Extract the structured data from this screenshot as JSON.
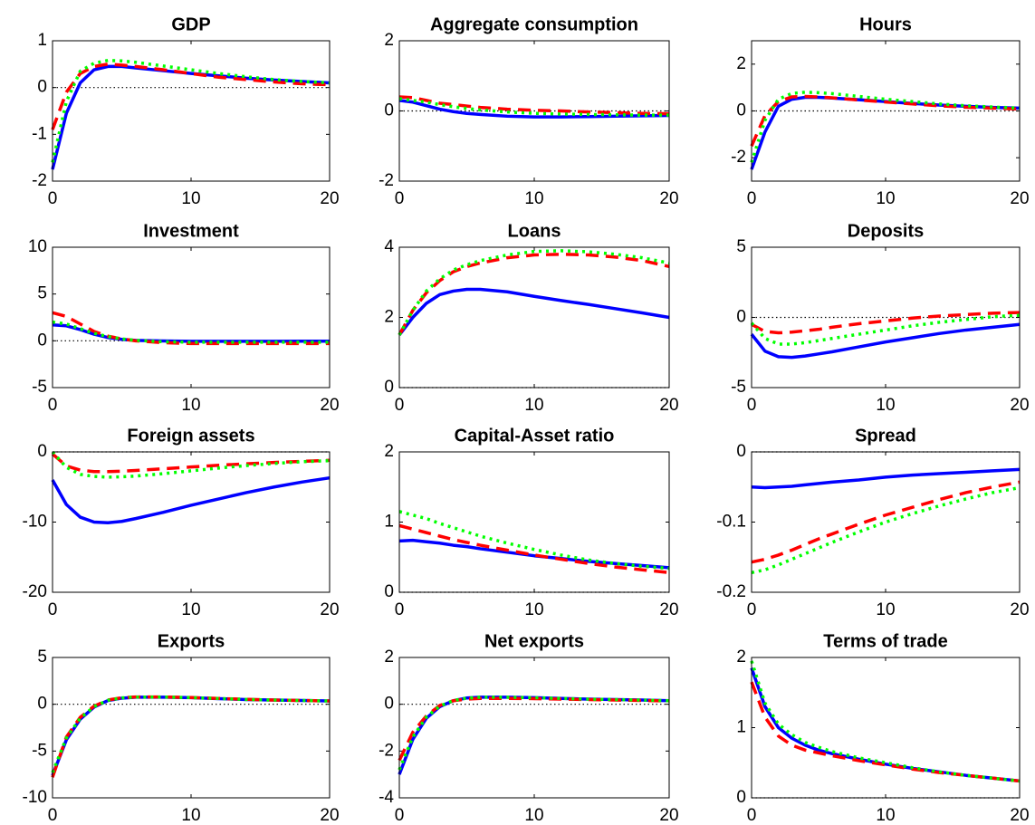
{
  "chart_data": [
    {
      "type": "line",
      "title": "GDP",
      "x": [
        0,
        1,
        2,
        3,
        4,
        5,
        6,
        8,
        10,
        12,
        14,
        16,
        18,
        20
      ],
      "xlim": [
        0,
        20
      ],
      "xticks": [
        0,
        10,
        20
      ],
      "ylim": [
        -2,
        1
      ],
      "yticks": [
        -2,
        -1,
        0,
        1
      ],
      "zero_line": true,
      "series": [
        {
          "color": "#0000ff",
          "style": "solid",
          "values": [
            -1.75,
            -0.55,
            0.1,
            0.38,
            0.45,
            0.45,
            0.42,
            0.36,
            0.3,
            0.25,
            0.2,
            0.16,
            0.13,
            0.1
          ]
        },
        {
          "color": "#ff0000",
          "style": "dashed",
          "values": [
            -0.9,
            -0.1,
            0.3,
            0.45,
            0.5,
            0.48,
            0.45,
            0.38,
            0.3,
            0.22,
            0.17,
            0.12,
            0.08,
            0.06
          ]
        },
        {
          "color": "#00ff00",
          "style": "dotted",
          "values": [
            -1.6,
            -0.3,
            0.35,
            0.52,
            0.58,
            0.57,
            0.54,
            0.46,
            0.38,
            0.3,
            0.23,
            0.17,
            0.13,
            0.1
          ]
        }
      ]
    },
    {
      "type": "line",
      "title": "Aggregate consumption",
      "x": [
        0,
        1,
        2,
        3,
        4,
        5,
        6,
        8,
        10,
        12,
        14,
        16,
        18,
        20
      ],
      "xlim": [
        0,
        20
      ],
      "xticks": [
        0,
        10,
        20
      ],
      "ylim": [
        -2,
        2
      ],
      "yticks": [
        -2,
        0,
        2
      ],
      "zero_line": true,
      "series": [
        {
          "color": "#0000ff",
          "style": "solid",
          "values": [
            0.3,
            0.25,
            0.15,
            0.05,
            -0.02,
            -0.07,
            -0.1,
            -0.15,
            -0.17,
            -0.17,
            -0.16,
            -0.15,
            -0.14,
            -0.13
          ]
        },
        {
          "color": "#ff0000",
          "style": "dashed",
          "values": [
            0.4,
            0.38,
            0.3,
            0.22,
            0.18,
            0.14,
            0.1,
            0.05,
            0.02,
            0,
            -0.03,
            -0.05,
            -0.07,
            -0.08
          ]
        },
        {
          "color": "#00ff00",
          "style": "dotted",
          "values": [
            0.35,
            0.3,
            0.25,
            0.18,
            0.12,
            0.07,
            0.03,
            -0.03,
            -0.07,
            -0.09,
            -0.1,
            -0.11,
            -0.12,
            -0.12
          ]
        }
      ]
    },
    {
      "type": "line",
      "title": "Hours",
      "x": [
        0,
        1,
        2,
        3,
        4,
        5,
        6,
        8,
        10,
        12,
        14,
        16,
        18,
        20
      ],
      "xlim": [
        0,
        20
      ],
      "xticks": [
        0,
        10,
        20
      ],
      "ylim": [
        -3,
        3
      ],
      "yticks": [
        -2,
        0,
        2
      ],
      "zero_line": true,
      "series": [
        {
          "color": "#0000ff",
          "style": "solid",
          "values": [
            -2.5,
            -0.9,
            0.2,
            0.5,
            0.58,
            0.58,
            0.55,
            0.48,
            0.4,
            0.32,
            0.25,
            0.2,
            0.15,
            0.12
          ]
        },
        {
          "color": "#ff0000",
          "style": "dashed",
          "values": [
            -1.5,
            -0.2,
            0.4,
            0.6,
            0.62,
            0.6,
            0.56,
            0.47,
            0.38,
            0.3,
            0.22,
            0.16,
            0.12,
            0.08
          ]
        },
        {
          "color": "#00ff00",
          "style": "dotted",
          "values": [
            -2.2,
            -0.4,
            0.5,
            0.75,
            0.8,
            0.78,
            0.74,
            0.62,
            0.5,
            0.4,
            0.3,
            0.22,
            0.17,
            0.12
          ]
        }
      ]
    },
    {
      "type": "line",
      "title": "Investment",
      "x": [
        0,
        1,
        2,
        3,
        4,
        5,
        6,
        8,
        10,
        12,
        14,
        16,
        18,
        20
      ],
      "xlim": [
        0,
        20
      ],
      "xticks": [
        0,
        10,
        20
      ],
      "ylim": [
        -5,
        10
      ],
      "yticks": [
        -5,
        0,
        5,
        10
      ],
      "zero_line": true,
      "series": [
        {
          "color": "#0000ff",
          "style": "solid",
          "values": [
            1.7,
            1.6,
            1.2,
            0.7,
            0.35,
            0.15,
            0.05,
            -0.02,
            -0.05,
            -0.05,
            -0.05,
            -0.05,
            -0.04,
            -0.04
          ]
        },
        {
          "color": "#ff0000",
          "style": "dashed",
          "values": [
            3.0,
            2.6,
            1.8,
            1.0,
            0.5,
            0.2,
            0,
            -0.2,
            -0.3,
            -0.3,
            -0.3,
            -0.3,
            -0.3,
            -0.3
          ]
        },
        {
          "color": "#00ff00",
          "style": "dotted",
          "values": [
            2.0,
            1.8,
            1.3,
            0.8,
            0.45,
            0.2,
            0.05,
            -0.1,
            -0.15,
            -0.15,
            -0.15,
            -0.15,
            -0.15,
            -0.15
          ]
        }
      ]
    },
    {
      "type": "line",
      "title": "Loans",
      "x": [
        0,
        1,
        2,
        3,
        4,
        5,
        6,
        8,
        10,
        12,
        14,
        16,
        18,
        20
      ],
      "xlim": [
        0,
        20
      ],
      "xticks": [
        0,
        10,
        20
      ],
      "ylim": [
        0,
        4
      ],
      "yticks": [
        0,
        2,
        4
      ],
      "zero_line": true,
      "series": [
        {
          "color": "#0000ff",
          "style": "solid",
          "values": [
            1.5,
            2.0,
            2.4,
            2.65,
            2.75,
            2.8,
            2.8,
            2.73,
            2.6,
            2.48,
            2.37,
            2.25,
            2.13,
            2.0
          ]
        },
        {
          "color": "#ff0000",
          "style": "dashed",
          "values": [
            1.5,
            2.2,
            2.7,
            3.05,
            3.3,
            3.45,
            3.55,
            3.7,
            3.78,
            3.8,
            3.78,
            3.72,
            3.62,
            3.45
          ]
        },
        {
          "color": "#00ff00",
          "style": "dotted",
          "values": [
            1.5,
            2.2,
            2.75,
            3.1,
            3.35,
            3.5,
            3.62,
            3.78,
            3.88,
            3.9,
            3.87,
            3.8,
            3.7,
            3.55
          ]
        }
      ]
    },
    {
      "type": "line",
      "title": "Deposits",
      "x": [
        0,
        1,
        2,
        3,
        4,
        5,
        6,
        8,
        10,
        12,
        14,
        16,
        18,
        20
      ],
      "xlim": [
        0,
        20
      ],
      "xticks": [
        0,
        10,
        20
      ],
      "ylim": [
        -5,
        5
      ],
      "yticks": [
        -5,
        0,
        5
      ],
      "zero_line": true,
      "series": [
        {
          "color": "#0000ff",
          "style": "solid",
          "values": [
            -1.2,
            -2.4,
            -2.8,
            -2.85,
            -2.75,
            -2.6,
            -2.45,
            -2.1,
            -1.75,
            -1.45,
            -1.15,
            -0.9,
            -0.7,
            -0.5
          ]
        },
        {
          "color": "#ff0000",
          "style": "dashed",
          "values": [
            -0.5,
            -1.0,
            -1.1,
            -1.05,
            -0.95,
            -0.85,
            -0.7,
            -0.45,
            -0.25,
            -0.05,
            0.1,
            0.2,
            0.3,
            0.35
          ]
        },
        {
          "color": "#00ff00",
          "style": "dotted",
          "values": [
            -0.4,
            -1.5,
            -1.9,
            -1.9,
            -1.8,
            -1.65,
            -1.5,
            -1.2,
            -0.9,
            -0.6,
            -0.35,
            -0.15,
            0.05,
            0.15
          ]
        }
      ]
    },
    {
      "type": "line",
      "title": "Foreign assets",
      "x": [
        0,
        1,
        2,
        3,
        4,
        5,
        6,
        8,
        10,
        12,
        14,
        16,
        18,
        20
      ],
      "xlim": [
        0,
        20
      ],
      "xticks": [
        0,
        10,
        20
      ],
      "ylim": [
        -20,
        0
      ],
      "yticks": [
        -20,
        -10,
        0
      ],
      "zero_line": true,
      "series": [
        {
          "color": "#0000ff",
          "style": "solid",
          "values": [
            -4,
            -7.5,
            -9.3,
            -10,
            -10.1,
            -9.9,
            -9.5,
            -8.6,
            -7.6,
            -6.7,
            -5.8,
            -5.0,
            -4.3,
            -3.7
          ]
        },
        {
          "color": "#ff0000",
          "style": "dashed",
          "values": [
            -0.3,
            -2,
            -2.6,
            -2.8,
            -2.8,
            -2.75,
            -2.65,
            -2.4,
            -2.15,
            -1.9,
            -1.7,
            -1.5,
            -1.35,
            -1.2
          ]
        },
        {
          "color": "#00ff00",
          "style": "dotted",
          "values": [
            0,
            -2.2,
            -3.2,
            -3.5,
            -3.6,
            -3.55,
            -3.45,
            -3.1,
            -2.7,
            -2.3,
            -1.95,
            -1.65,
            -1.4,
            -1.25
          ]
        }
      ]
    },
    {
      "type": "line",
      "title": "Capital-Asset ratio",
      "x": [
        0,
        1,
        2,
        3,
        4,
        5,
        6,
        8,
        10,
        12,
        14,
        16,
        18,
        20
      ],
      "xlim": [
        0,
        20
      ],
      "xticks": [
        0,
        10,
        20
      ],
      "ylim": [
        0,
        2
      ],
      "yticks": [
        0,
        1,
        2
      ],
      "zero_line": true,
      "series": [
        {
          "color": "#0000ff",
          "style": "solid",
          "values": [
            0.73,
            0.74,
            0.72,
            0.7,
            0.67,
            0.65,
            0.62,
            0.57,
            0.52,
            0.48,
            0.44,
            0.41,
            0.38,
            0.35
          ]
        },
        {
          "color": "#ff0000",
          "style": "dashed",
          "values": [
            0.95,
            0.9,
            0.85,
            0.8,
            0.75,
            0.71,
            0.67,
            0.6,
            0.53,
            0.47,
            0.41,
            0.36,
            0.32,
            0.28
          ]
        },
        {
          "color": "#00ff00",
          "style": "dotted",
          "values": [
            1.15,
            1.1,
            1.05,
            0.98,
            0.92,
            0.86,
            0.8,
            0.7,
            0.61,
            0.53,
            0.46,
            0.41,
            0.37,
            0.34
          ]
        }
      ]
    },
    {
      "type": "line",
      "title": "Spread",
      "x": [
        0,
        1,
        2,
        3,
        4,
        5,
        6,
        8,
        10,
        12,
        14,
        16,
        18,
        20
      ],
      "xlim": [
        0,
        20
      ],
      "xticks": [
        0,
        10,
        20
      ],
      "ylim": [
        -0.2,
        0
      ],
      "yticks": [
        -0.2,
        -0.1,
        0
      ],
      "zero_line": true,
      "series": [
        {
          "color": "#0000ff",
          "style": "solid",
          "values": [
            -0.05,
            -0.051,
            -0.05,
            -0.049,
            -0.047,
            -0.045,
            -0.043,
            -0.04,
            -0.036,
            -0.033,
            -0.031,
            -0.029,
            -0.027,
            -0.025
          ]
        },
        {
          "color": "#ff0000",
          "style": "dashed",
          "values": [
            -0.157,
            -0.153,
            -0.147,
            -0.14,
            -0.132,
            -0.124,
            -0.117,
            -0.103,
            -0.09,
            -0.079,
            -0.068,
            -0.058,
            -0.05,
            -0.043
          ]
        },
        {
          "color": "#00ff00",
          "style": "dotted",
          "values": [
            -0.172,
            -0.168,
            -0.161,
            -0.153,
            -0.145,
            -0.137,
            -0.129,
            -0.114,
            -0.1,
            -0.088,
            -0.077,
            -0.067,
            -0.058,
            -0.051
          ]
        }
      ]
    },
    {
      "type": "line",
      "title": "Exports",
      "x": [
        0,
        1,
        2,
        3,
        4,
        5,
        6,
        8,
        10,
        12,
        14,
        16,
        18,
        20
      ],
      "xlim": [
        0,
        20
      ],
      "xticks": [
        0,
        10,
        20
      ],
      "ylim": [
        -10,
        5
      ],
      "yticks": [
        -10,
        -5,
        0,
        5
      ],
      "zero_line": true,
      "series": [
        {
          "color": "#0000ff",
          "style": "solid",
          "values": [
            -7.6,
            -3.8,
            -1.6,
            -0.3,
            0.4,
            0.65,
            0.75,
            0.75,
            0.7,
            0.6,
            0.5,
            0.45,
            0.4,
            0.35
          ]
        },
        {
          "color": "#ff0000",
          "style": "dashed",
          "values": [
            -7.8,
            -3.5,
            -1.4,
            -0.2,
            0.45,
            0.7,
            0.78,
            0.78,
            0.72,
            0.62,
            0.52,
            0.45,
            0.4,
            0.35
          ]
        },
        {
          "color": "#00ff00",
          "style": "dotted",
          "values": [
            -7.3,
            -3.6,
            -1.5,
            -0.25,
            0.42,
            0.68,
            0.77,
            0.77,
            0.71,
            0.61,
            0.51,
            0.45,
            0.4,
            0.35
          ]
        }
      ]
    },
    {
      "type": "line",
      "title": "Net exports",
      "x": [
        0,
        1,
        2,
        3,
        4,
        5,
        6,
        8,
        10,
        12,
        14,
        16,
        18,
        20
      ],
      "xlim": [
        0,
        20
      ],
      "xticks": [
        0,
        10,
        20
      ],
      "ylim": [
        -4,
        2
      ],
      "yticks": [
        -4,
        -2,
        0,
        2
      ],
      "zero_line": true,
      "series": [
        {
          "color": "#0000ff",
          "style": "solid",
          "values": [
            -3.0,
            -1.5,
            -0.6,
            -0.1,
            0.15,
            0.27,
            0.3,
            0.3,
            0.28,
            0.25,
            0.22,
            0.2,
            0.18,
            0.15
          ]
        },
        {
          "color": "#ff0000",
          "style": "dashed",
          "values": [
            -2.4,
            -1.2,
            -0.5,
            -0.05,
            0.15,
            0.22,
            0.25,
            0.25,
            0.24,
            0.22,
            0.2,
            0.18,
            0.16,
            0.14
          ]
        },
        {
          "color": "#00ff00",
          "style": "dotted",
          "values": [
            -2.8,
            -1.4,
            -0.55,
            -0.08,
            0.16,
            0.26,
            0.3,
            0.3,
            0.28,
            0.25,
            0.22,
            0.2,
            0.18,
            0.15
          ]
        }
      ]
    },
    {
      "type": "line",
      "title": "Terms of trade",
      "x": [
        0,
        1,
        2,
        3,
        4,
        5,
        6,
        8,
        10,
        12,
        14,
        16,
        18,
        20
      ],
      "xlim": [
        0,
        20
      ],
      "xticks": [
        0,
        10,
        20
      ],
      "ylim": [
        0,
        2
      ],
      "yticks": [
        0,
        1,
        2
      ],
      "zero_line": true,
      "series": [
        {
          "color": "#0000ff",
          "style": "solid",
          "values": [
            1.85,
            1.3,
            1.0,
            0.85,
            0.75,
            0.68,
            0.63,
            0.55,
            0.48,
            0.42,
            0.37,
            0.32,
            0.28,
            0.24
          ]
        },
        {
          "color": "#ff0000",
          "style": "dashed",
          "values": [
            1.65,
            1.15,
            0.88,
            0.75,
            0.68,
            0.64,
            0.6,
            0.53,
            0.47,
            0.41,
            0.36,
            0.32,
            0.28,
            0.24
          ]
        },
        {
          "color": "#00ff00",
          "style": "dotted",
          "values": [
            1.95,
            1.35,
            1.05,
            0.9,
            0.79,
            0.72,
            0.66,
            0.57,
            0.5,
            0.43,
            0.37,
            0.32,
            0.28,
            0.24
          ]
        }
      ]
    }
  ]
}
